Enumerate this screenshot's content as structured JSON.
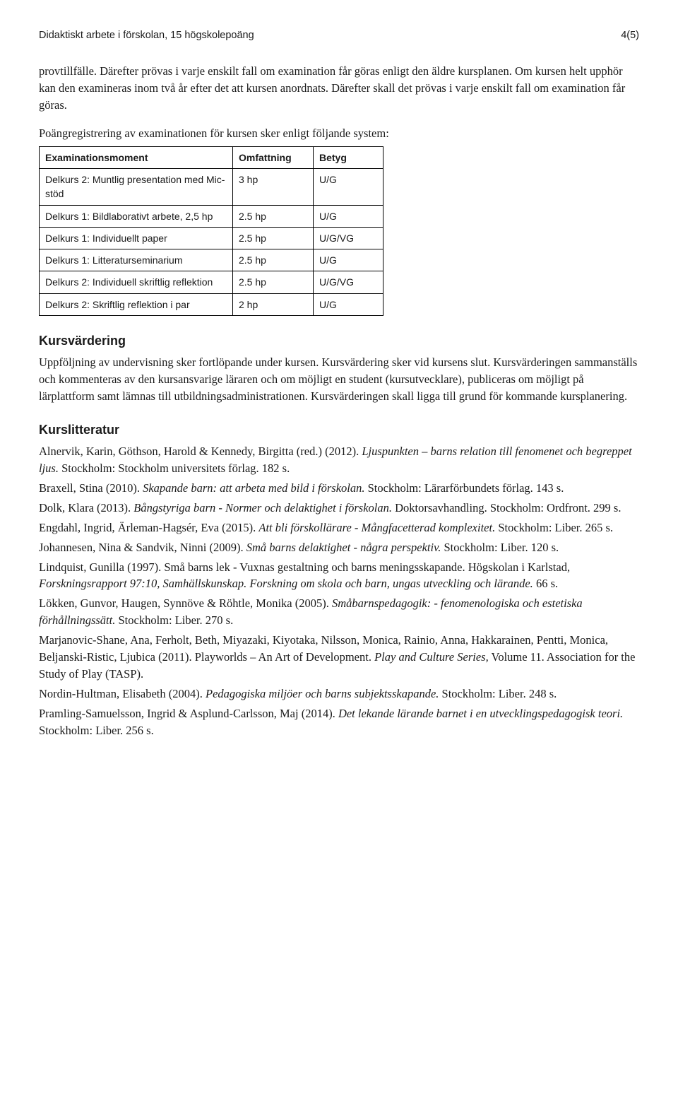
{
  "header": {
    "left": "Didaktiskt arbete i förskolan, 15 högskolepoäng",
    "right": "4(5)"
  },
  "intro": [
    "provtillfälle. Därefter prövas i varje enskilt fall om examination får göras enligt den äldre kursplanen. Om kursen helt upphör kan den examineras inom två år efter det att kursen anordnats. Därefter skall det prövas i varje enskilt fall om examination får göras."
  ],
  "system_line": "Poängregistrering av examinationen för kursen sker enligt följande system:",
  "table": {
    "headers": [
      "Examinationsmoment",
      "Omfattning",
      "Betyg"
    ],
    "rows": [
      [
        "Delkurs 2: Muntlig presentation med Mic-stöd",
        "3 hp",
        "U/G"
      ],
      [
        "Delkurs 1: Bildlaborativt arbete, 2,5 hp",
        "2.5 hp",
        "U/G"
      ],
      [
        "Delkurs 1: Individuellt paper",
        "2.5 hp",
        "U/G/VG"
      ],
      [
        "Delkurs 1: Litteraturseminarium",
        "2.5 hp",
        "U/G"
      ],
      [
        "Delkurs 2: Individuell skriftlig reflektion",
        "2.5 hp",
        "U/G/VG"
      ],
      [
        "Delkurs 2: Skriftlig reflektion i par",
        "2 hp",
        "U/G"
      ]
    ]
  },
  "kursvardering": {
    "heading": "Kursvärdering",
    "text": "Uppföljning av undervisning sker fortlöpande under kursen. Kursvärdering sker vid kursens slut. Kursvärderingen sammanställs och kommenteras av den kursansvarige läraren och om möjligt en student (kursutvecklare), publiceras om möjligt på lärplattform samt lämnas till utbildningsadministrationen. Kursvärderingen skall ligga till grund för kommande kursplanering."
  },
  "kurslitteratur": {
    "heading": "Kurslitteratur",
    "items": [
      {
        "html": "Alnervik, Karin, Göthson, Harold & Kennedy, Birgitta (red.) (2012). <span class=\"italic\">Ljuspunkten – barns relation till fenomenet och begreppet ljus.</span> Stockholm: Stockholm universitets förlag. 182 s."
      },
      {
        "html": "Braxell, Stina (2010). <span class=\"italic\">Skapande barn: att arbeta med bild i förskolan.</span> Stockholm: Lärarförbundets förlag. 143 s."
      },
      {
        "html": "Dolk, Klara (2013). <span class=\"italic\">Bångstyriga barn - Normer och delaktighet i förskolan.</span> Doktorsavhandling. Stockholm: Ordfront. 299 s."
      },
      {
        "html": "Engdahl, Ingrid, Ärleman-Hagsér, Eva (2015). <span class=\"italic\">Att bli förskollärare - Mångfacetterad komplexitet.</span> Stockholm: Liber. 265 s."
      },
      {
        "html": "Johannesen, Nina & Sandvik, Ninni (2009). <span class=\"italic\">Små barns delaktighet - några perspektiv.</span> Stockholm: Liber. 120 s."
      },
      {
        "html": "Lindquist, Gunilla (1997). Små barns lek - Vuxnas gestaltning och barns meningsskapande. Högskolan i Karlstad, <span class=\"italic\">Forskningsrapport 97:10, Samhällskunskap. Forskning om skola och barn, ungas utveckling och lärande.</span> 66 s."
      },
      {
        "html": "Lökken, Gunvor, Haugen, Synnöve & Röhtle, Monika (2005). <span class=\"italic\">Småbarnspedagogik: - fenomenologiska och estetiska förhållningssätt.</span> Stockholm: Liber. 270 s."
      },
      {
        "html": "Marjanovic-Shane, Ana, Ferholt, Beth, Miyazaki, Kiyotaka, Nilsson, Monica, Rainio, Anna, Hakkarainen, Pentti, Monica, Beljanski-Ristic, Ljubica (2011). Playworlds – An Art of Development. <span class=\"italic\">Play and Culture Series,</span> Volume 11. Association for the Study of Play (TASP)."
      },
      {
        "html": "Nordin-Hultman, Elisabeth (2004). <span class=\"italic\">Pedagogiska miljöer och barns subjektsskapande.</span> Stockholm: Liber. 248 s."
      },
      {
        "html": "Pramling-Samuelsson, Ingrid & Asplund-Carlsson, Maj (2014). <span class=\"italic\">Det lekande lärande barnet i en utvecklingspedagogisk teori.</span> Stockholm: Liber. 256 s."
      }
    ]
  }
}
